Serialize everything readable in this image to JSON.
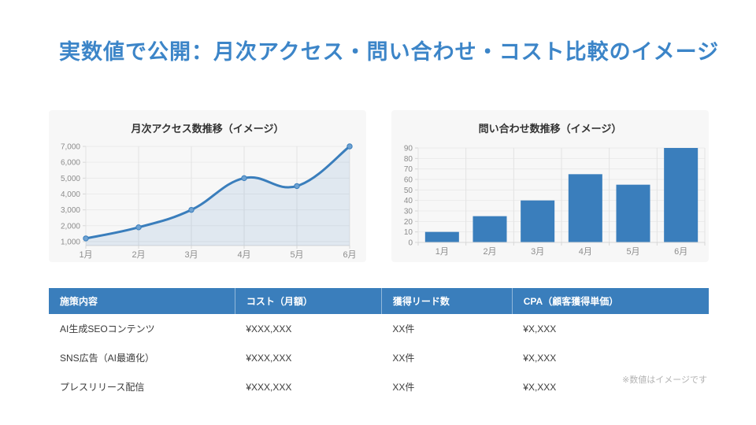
{
  "slide": {
    "title": "実数値で公開：月次アクセス・問い合わせ・コスト比較のイメージ",
    "note": "※数値はイメージです"
  },
  "colors": {
    "accent": "#3a7ebc",
    "title_text": "#3c85c8",
    "card_bg": "#f7f7f7",
    "chart_title_text": "#333333",
    "axis_text": "#8c8c8c",
    "grid_vertical": "#e3e3e3",
    "grid_horizontal": "#ebebeb",
    "axis_line": "#d7d7d7",
    "area_fill": "rgba(58,126,188,0.12)",
    "marker_fill": "#6ea2d2",
    "note_text": "#b3b3b3"
  },
  "chart_data": [
    {
      "type": "line",
      "title": "月次アクセス数推移（イメージ）",
      "categories": [
        "1月",
        "2月",
        "3月",
        "4月",
        "5月",
        "6月"
      ],
      "values": [
        1200,
        1900,
        3000,
        5000,
        4500,
        7000
      ],
      "ylim": [
        750,
        7000
      ],
      "yticks": [
        1000,
        2000,
        3000,
        4000,
        5000,
        6000,
        7000
      ],
      "grid": true,
      "legend": false,
      "smooth": true,
      "area": true
    },
    {
      "type": "bar",
      "title": "問い合わせ数推移（イメージ）",
      "categories": [
        "1月",
        "2月",
        "3月",
        "4月",
        "5月",
        "6月"
      ],
      "values": [
        10,
        25,
        40,
        65,
        55,
        90
      ],
      "ylim": [
        0,
        90
      ],
      "yticks": [
        0,
        10,
        20,
        30,
        40,
        50,
        60,
        70,
        80,
        90
      ],
      "grid": true,
      "legend": false
    }
  ],
  "table": {
    "headers": [
      "施策内容",
      "コスト（月額）",
      "獲得リード数",
      "CPA（顧客獲得単価）"
    ],
    "rows": [
      [
        "AI生成SEOコンテンツ",
        "¥XXX,XXX",
        "XX件",
        "¥X,XXX"
      ],
      [
        "SNS広告（AI最適化）",
        "¥XXX,XXX",
        "XX件",
        "¥X,XXX"
      ],
      [
        "プレスリリース配信",
        "¥XXX,XXX",
        "XX件",
        "¥X,XXX"
      ]
    ]
  }
}
